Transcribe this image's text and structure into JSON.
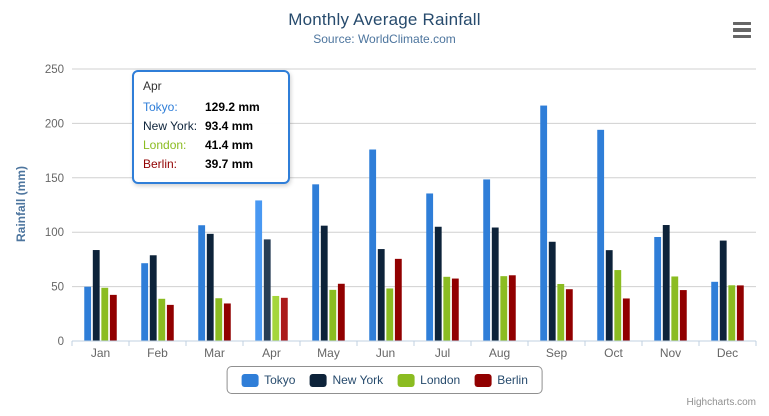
{
  "header": {
    "title": "Monthly Average Rainfall",
    "subtitle": "Source: WorldClimate.com"
  },
  "y_axis": {
    "title": "Rainfall (mm)",
    "ticks": [
      0,
      50,
      100,
      150,
      200,
      250
    ]
  },
  "chart_data": {
    "type": "bar",
    "title": "Monthly Average Rainfall",
    "subtitle": "Source: WorldClimate.com",
    "xlabel": "",
    "ylabel": "Rainfall (mm)",
    "ylim": [
      0,
      250
    ],
    "y_tick_step": 50,
    "grid": true,
    "legend_position": "bottom",
    "categories": [
      "Jan",
      "Feb",
      "Mar",
      "Apr",
      "May",
      "Jun",
      "Jul",
      "Aug",
      "Sep",
      "Oct",
      "Nov",
      "Dec"
    ],
    "series": [
      {
        "name": "Tokyo",
        "color": "#2f7ed8",
        "hover_color": "#4998f2",
        "values": [
          49.9,
          71.5,
          106.4,
          129.2,
          144.0,
          176.0,
          135.6,
          148.5,
          216.4,
          194.1,
          95.6,
          54.4
        ]
      },
      {
        "name": "New York",
        "color": "#0d233a",
        "hover_color": "#273d54",
        "values": [
          83.6,
          78.8,
          98.5,
          93.4,
          106.0,
          84.5,
          105.0,
          104.3,
          91.2,
          83.5,
          106.6,
          92.3
        ]
      },
      {
        "name": "London",
        "color": "#8bbc21",
        "hover_color": "#a5d63b",
        "values": [
          48.9,
          38.8,
          39.3,
          41.4,
          47.0,
          48.3,
          59.0,
          59.6,
          52.4,
          65.2,
          59.3,
          51.2
        ]
      },
      {
        "name": "Berlin",
        "color": "#910000",
        "hover_color": "#ab1a1a",
        "values": [
          42.4,
          33.2,
          34.5,
          39.7,
          52.6,
          75.5,
          57.4,
          60.4,
          47.6,
          39.1,
          46.8,
          51.1
        ]
      }
    ],
    "highlighted_category": "Apr"
  },
  "tooltip": {
    "header": "Apr",
    "rows": [
      {
        "series": "Tokyo",
        "value": "129.2 mm"
      },
      {
        "series": "New York",
        "value": "93.4 mm"
      },
      {
        "series": "London",
        "value": "41.4 mm"
      },
      {
        "series": "Berlin",
        "value": "39.7 mm"
      }
    ]
  },
  "legend": {
    "items": [
      "Tokyo",
      "New York",
      "London",
      "Berlin"
    ]
  },
  "credits": {
    "label": "Highcharts.com"
  },
  "context_menu": {
    "icon": "hamburger-icon"
  },
  "colors": {
    "title": "#274b6d",
    "subtitle": "#4d759e",
    "axis_title": "#4d759e",
    "axis_labels": "#666666",
    "grid_line": "#d0d0d0",
    "axis_line": "#c0d0e0",
    "legend_text": "#274b6d",
    "legend_border": "#909090",
    "tooltip_border": "#2f7ed8",
    "credits_text": "#909090"
  }
}
